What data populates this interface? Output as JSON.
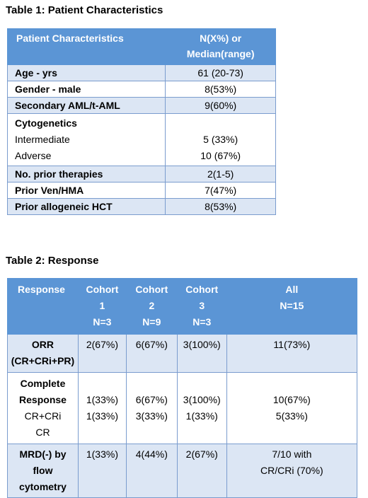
{
  "table1": {
    "caption": "Table 1: Patient Characteristics",
    "header": {
      "col1": "Patient Characteristics",
      "col2_line1": "N(X%) or",
      "col2_line2": "Median(range)"
    },
    "rows": [
      {
        "label": "Age - yrs",
        "value": "61 (20-73)"
      },
      {
        "label": "Gender - male",
        "value": "8(53%)"
      },
      {
        "label": "Secondary AML/t-AML",
        "value": "9(60%)"
      },
      {
        "label": "Cytogenetics",
        "sub1_label": "Intermediate",
        "sub1_value": "5 (33%)",
        "sub2_label": "Adverse",
        "sub2_value": "10 (67%)"
      },
      {
        "label": "No. prior therapies",
        "value": "2(1-5)"
      },
      {
        "label": "Prior Ven/HMA",
        "value": "7(47%)"
      },
      {
        "label": "Prior allogeneic HCT",
        "value": "8(53%)"
      }
    ]
  },
  "table2": {
    "caption": "Table 2: Response",
    "header": {
      "response": "Response",
      "cohort1": [
        "Cohort",
        "1",
        "N=3"
      ],
      "cohort2": [
        "Cohort",
        "2",
        "N=9"
      ],
      "cohort3": [
        "Cohort",
        "3",
        "N=3"
      ],
      "all": [
        "All",
        "N=15"
      ]
    },
    "rows": {
      "orr": {
        "label": [
          "ORR",
          "(CR+CRi+PR)"
        ],
        "c1": "2(67%)",
        "c2": "6(67%)",
        "c3": "3(100%)",
        "all": "11(73%)"
      },
      "cr": {
        "label": [
          "Complete",
          "Response"
        ],
        "sub1": "CR+CRi",
        "sub2": "CR",
        "c1": [
          "1(33%)",
          "1(33%)"
        ],
        "c2": [
          "6(67%)",
          "3(33%)"
        ],
        "c3": [
          "3(100%)",
          "1(33%)"
        ],
        "all": [
          "10(67%)",
          "5(33%)"
        ]
      },
      "mrd": {
        "label": [
          "MRD(-) by",
          "flow",
          "cytometry"
        ],
        "c1": "1(33%)",
        "c2": "4(44%)",
        "c3": "2(67%)",
        "all": [
          "7/10 with",
          "CR/CRi (70%)"
        ]
      }
    }
  }
}
